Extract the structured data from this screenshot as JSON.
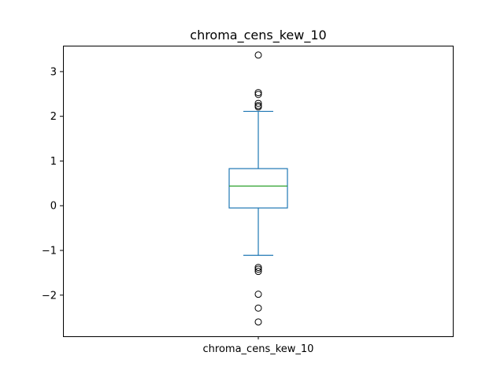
{
  "chart_data": {
    "type": "box",
    "title": "chroma_cens_kew_10",
    "categories": [
      "chroma_cens_kew_10"
    ],
    "ylim": [
      -2.92,
      3.58
    ],
    "yticks": [
      -2,
      -1,
      0,
      1,
      2,
      3
    ],
    "ytick_labels": [
      "−2",
      "−1",
      "0",
      "1",
      "2",
      "3"
    ],
    "grid": false,
    "colors": {
      "box": "#1f77b4",
      "median": "#2ca02c",
      "flier": "#000000"
    },
    "box": {
      "whisker_low": -1.11,
      "q1": -0.05,
      "median": 0.44,
      "q3": 0.83,
      "whisker_high": 2.11
    },
    "outliers": [
      3.37,
      2.53,
      2.49,
      2.29,
      2.24,
      2.21,
      -1.38,
      -1.42,
      -1.47,
      -1.98,
      -2.29,
      -2.6
    ]
  }
}
